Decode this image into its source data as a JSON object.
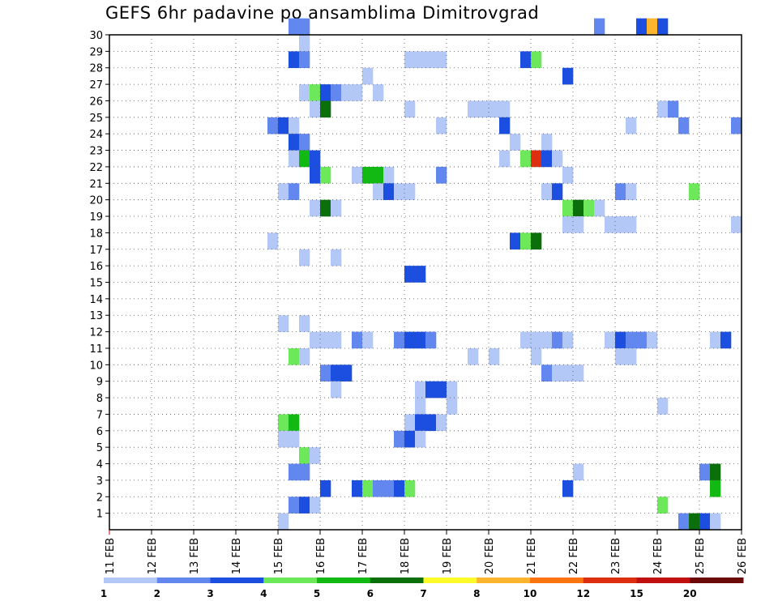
{
  "chart_data": {
    "type": "heatmap",
    "title": "GEFS 6hr padavine po ansamblima Dimitrovgrad",
    "xlabel": "",
    "ylabel": "",
    "x_tick_labels": [
      "11 FEB",
      "12 FEB",
      "13 FEB",
      "14 FEB",
      "15 FEB",
      "16 FEB",
      "17 FEB",
      "18 FEB",
      "19 FEB",
      "20 FEB",
      "21 FEB",
      "22 FEB",
      "23 FEB",
      "24 FEB",
      "25 FEB",
      "26 FEB"
    ],
    "y_tick_labels": [
      "1",
      "2",
      "3",
      "4",
      "5",
      "6",
      "7",
      "8",
      "9",
      "10",
      "11",
      "12",
      "13",
      "14",
      "15",
      "16",
      "17",
      "18",
      "19",
      "20",
      "21",
      "22",
      "23",
      "24",
      "25",
      "26",
      "27",
      "28",
      "29",
      "30"
    ],
    "xlim_days": [
      0,
      15
    ],
    "ylim_members": [
      0,
      30
    ],
    "x_step_days": 0.25,
    "grid": true,
    "legend": {
      "placement": "bottom",
      "colors": [
        "#b4c8f8",
        "#6288f0",
        "#1c4ee0",
        "#6de85a",
        "#12b912",
        "#0b6f0b",
        "#fffa2a",
        "#fdb530",
        "#fd7410",
        "#dd2e10",
        "#c01010",
        "#6c0a0a"
      ],
      "labels": [
        "1",
        "2",
        "3",
        "4",
        "5",
        "6",
        "7",
        "8",
        "10",
        "12",
        "15",
        "20"
      ]
    },
    "level_colors": {
      "1": "#b4c8f8",
      "2": "#6288f0",
      "3": "#1c4ee0",
      "4": "#6de85a",
      "5": "#12b912",
      "6": "#0b6f0b",
      "8": "#fdb530",
      "11": "#dd2e10"
    },
    "cells": [
      {
        "member": 30,
        "day": 4.25,
        "level": 2
      },
      {
        "member": 30,
        "day": 4.5,
        "level": 2
      },
      {
        "member": 30,
        "day": 11.5,
        "level": 2
      },
      {
        "member": 30,
        "day": 12.5,
        "level": 3
      },
      {
        "member": 30,
        "day": 12.75,
        "level": 8
      },
      {
        "member": 30,
        "day": 13.0,
        "level": 3
      },
      {
        "member": 29,
        "day": 4.5,
        "level": 1
      },
      {
        "member": 28,
        "day": 4.25,
        "level": 3
      },
      {
        "member": 28,
        "day": 4.5,
        "level": 2
      },
      {
        "member": 28,
        "day": 7.0,
        "level": 1
      },
      {
        "member": 28,
        "day": 7.25,
        "level": 1
      },
      {
        "member": 28,
        "day": 7.5,
        "level": 1
      },
      {
        "member": 28,
        "day": 7.75,
        "level": 1
      },
      {
        "member": 28,
        "day": 9.75,
        "level": 3
      },
      {
        "member": 28,
        "day": 10.0,
        "level": 4
      },
      {
        "member": 27,
        "day": 6.0,
        "level": 1
      },
      {
        "member": 27,
        "day": 10.75,
        "level": 3
      },
      {
        "member": 26,
        "day": 4.5,
        "level": 1
      },
      {
        "member": 26,
        "day": 4.75,
        "level": 4
      },
      {
        "member": 26,
        "day": 5.0,
        "level": 3
      },
      {
        "member": 26,
        "day": 5.25,
        "level": 2
      },
      {
        "member": 26,
        "day": 5.5,
        "level": 1
      },
      {
        "member": 26,
        "day": 5.75,
        "level": 1
      },
      {
        "member": 26,
        "day": 6.25,
        "level": 1
      },
      {
        "member": 25,
        "day": 4.75,
        "level": 1
      },
      {
        "member": 25,
        "day": 5.0,
        "level": 6
      },
      {
        "member": 25,
        "day": 7.0,
        "level": 1
      },
      {
        "member": 25,
        "day": 8.5,
        "level": 1
      },
      {
        "member": 25,
        "day": 8.75,
        "level": 1
      },
      {
        "member": 25,
        "day": 9.0,
        "level": 1
      },
      {
        "member": 25,
        "day": 9.25,
        "level": 1
      },
      {
        "member": 25,
        "day": 13.0,
        "level": 1
      },
      {
        "member": 25,
        "day": 13.25,
        "level": 2
      },
      {
        "member": 24,
        "day": 3.75,
        "level": 2
      },
      {
        "member": 24,
        "day": 4.0,
        "level": 3
      },
      {
        "member": 24,
        "day": 4.25,
        "level": 1
      },
      {
        "member": 24,
        "day": 7.75,
        "level": 1
      },
      {
        "member": 24,
        "day": 9.25,
        "level": 3
      },
      {
        "member": 24,
        "day": 12.25,
        "level": 1
      },
      {
        "member": 24,
        "day": 13.5,
        "level": 2
      },
      {
        "member": 24,
        "day": 14.75,
        "level": 2
      },
      {
        "member": 23,
        "day": 4.25,
        "level": 3
      },
      {
        "member": 23,
        "day": 4.5,
        "level": 2
      },
      {
        "member": 23,
        "day": 9.5,
        "level": 1
      },
      {
        "member": 23,
        "day": 10.25,
        "level": 1
      },
      {
        "member": 22,
        "day": 4.25,
        "level": 1
      },
      {
        "member": 22,
        "day": 4.5,
        "level": 5
      },
      {
        "member": 22,
        "day": 4.75,
        "level": 3
      },
      {
        "member": 22,
        "day": 9.25,
        "level": 1
      },
      {
        "member": 22,
        "day": 9.75,
        "level": 4
      },
      {
        "member": 22,
        "day": 10.0,
        "level": 11
      },
      {
        "member": 22,
        "day": 10.25,
        "level": 3
      },
      {
        "member": 22,
        "day": 10.5,
        "level": 1
      },
      {
        "member": 21,
        "day": 4.75,
        "level": 3
      },
      {
        "member": 21,
        "day": 5.0,
        "level": 4
      },
      {
        "member": 21,
        "day": 5.75,
        "level": 1
      },
      {
        "member": 21,
        "day": 6.0,
        "level": 5
      },
      {
        "member": 21,
        "day": 6.25,
        "level": 5
      },
      {
        "member": 21,
        "day": 6.5,
        "level": 1
      },
      {
        "member": 21,
        "day": 7.75,
        "level": 2
      },
      {
        "member": 21,
        "day": 10.75,
        "level": 1
      },
      {
        "member": 20,
        "day": 4.0,
        "level": 1
      },
      {
        "member": 20,
        "day": 4.25,
        "level": 2
      },
      {
        "member": 20,
        "day": 6.25,
        "level": 1
      },
      {
        "member": 20,
        "day": 6.5,
        "level": 3
      },
      {
        "member": 20,
        "day": 6.75,
        "level": 1
      },
      {
        "member": 20,
        "day": 7.0,
        "level": 1
      },
      {
        "member": 20,
        "day": 10.25,
        "level": 1
      },
      {
        "member": 20,
        "day": 10.5,
        "level": 3
      },
      {
        "member": 20,
        "day": 12.0,
        "level": 2
      },
      {
        "member": 20,
        "day": 12.25,
        "level": 1
      },
      {
        "member": 20,
        "day": 13.75,
        "level": 4
      },
      {
        "member": 19,
        "day": 4.75,
        "level": 1
      },
      {
        "member": 19,
        "day": 5.0,
        "level": 6
      },
      {
        "member": 19,
        "day": 5.25,
        "level": 1
      },
      {
        "member": 19,
        "day": 10.75,
        "level": 4
      },
      {
        "member": 19,
        "day": 11.0,
        "level": 6
      },
      {
        "member": 19,
        "day": 11.25,
        "level": 4
      },
      {
        "member": 19,
        "day": 11.5,
        "level": 1
      },
      {
        "member": 18,
        "day": 10.75,
        "level": 1
      },
      {
        "member": 18,
        "day": 11.0,
        "level": 1
      },
      {
        "member": 18,
        "day": 11.75,
        "level": 1
      },
      {
        "member": 18,
        "day": 12.0,
        "level": 1
      },
      {
        "member": 18,
        "day": 12.25,
        "level": 1
      },
      {
        "member": 18,
        "day": 14.75,
        "level": 1
      },
      {
        "member": 17,
        "day": 3.75,
        "level": 1
      },
      {
        "member": 17,
        "day": 9.5,
        "level": 3
      },
      {
        "member": 17,
        "day": 9.75,
        "level": 4
      },
      {
        "member": 17,
        "day": 10.0,
        "level": 6
      },
      {
        "member": 16,
        "day": 4.5,
        "level": 1
      },
      {
        "member": 16,
        "day": 5.25,
        "level": 1
      },
      {
        "member": 15,
        "day": 7.0,
        "level": 3
      },
      {
        "member": 15,
        "day": 7.25,
        "level": 3
      },
      {
        "member": 12,
        "day": 4.0,
        "level": 1
      },
      {
        "member": 12,
        "day": 4.5,
        "level": 1
      },
      {
        "member": 11,
        "day": 4.75,
        "level": 1
      },
      {
        "member": 11,
        "day": 5.0,
        "level": 1
      },
      {
        "member": 11,
        "day": 5.25,
        "level": 1
      },
      {
        "member": 11,
        "day": 5.75,
        "level": 2
      },
      {
        "member": 11,
        "day": 6.0,
        "level": 1
      },
      {
        "member": 11,
        "day": 6.75,
        "level": 2
      },
      {
        "member": 11,
        "day": 7.0,
        "level": 3
      },
      {
        "member": 11,
        "day": 7.25,
        "level": 3
      },
      {
        "member": 11,
        "day": 7.5,
        "level": 2
      },
      {
        "member": 11,
        "day": 9.75,
        "level": 1
      },
      {
        "member": 11,
        "day": 10.0,
        "level": 1
      },
      {
        "member": 11,
        "day": 10.25,
        "level": 1
      },
      {
        "member": 11,
        "day": 10.5,
        "level": 2
      },
      {
        "member": 11,
        "day": 10.75,
        "level": 1
      },
      {
        "member": 11,
        "day": 11.75,
        "level": 1
      },
      {
        "member": 11,
        "day": 12.0,
        "level": 3
      },
      {
        "member": 11,
        "day": 12.25,
        "level": 2
      },
      {
        "member": 11,
        "day": 12.5,
        "level": 2
      },
      {
        "member": 11,
        "day": 12.75,
        "level": 1
      },
      {
        "member": 11,
        "day": 14.25,
        "level": 1
      },
      {
        "member": 11,
        "day": 14.5,
        "level": 3
      },
      {
        "member": 10,
        "day": 4.25,
        "level": 4
      },
      {
        "member": 10,
        "day": 4.5,
        "level": 1
      },
      {
        "member": 10,
        "day": 8.5,
        "level": 1
      },
      {
        "member": 10,
        "day": 9.0,
        "level": 1
      },
      {
        "member": 10,
        "day": 10.0,
        "level": 1
      },
      {
        "member": 10,
        "day": 12.0,
        "level": 1
      },
      {
        "member": 10,
        "day": 12.25,
        "level": 1
      },
      {
        "member": 9,
        "day": 5.0,
        "level": 2
      },
      {
        "member": 9,
        "day": 5.25,
        "level": 3
      },
      {
        "member": 9,
        "day": 5.5,
        "level": 3
      },
      {
        "member": 9,
        "day": 10.25,
        "level": 2
      },
      {
        "member": 9,
        "day": 10.5,
        "level": 1
      },
      {
        "member": 9,
        "day": 10.75,
        "level": 1
      },
      {
        "member": 9,
        "day": 11.0,
        "level": 1
      },
      {
        "member": 8,
        "day": 5.25,
        "level": 1
      },
      {
        "member": 8,
        "day": 7.25,
        "level": 1
      },
      {
        "member": 8,
        "day": 7.5,
        "level": 3
      },
      {
        "member": 8,
        "day": 7.75,
        "level": 3
      },
      {
        "member": 8,
        "day": 8.0,
        "level": 1
      },
      {
        "member": 7,
        "day": 7.25,
        "level": 1
      },
      {
        "member": 7,
        "day": 8.0,
        "level": 1
      },
      {
        "member": 7,
        "day": 13.0,
        "level": 1
      },
      {
        "member": 6,
        "day": 4.0,
        "level": 4
      },
      {
        "member": 6,
        "day": 4.25,
        "level": 5
      },
      {
        "member": 6,
        "day": 7.0,
        "level": 1
      },
      {
        "member": 6,
        "day": 7.25,
        "level": 3
      },
      {
        "member": 6,
        "day": 7.5,
        "level": 3
      },
      {
        "member": 6,
        "day": 7.75,
        "level": 1
      },
      {
        "member": 5,
        "day": 4.0,
        "level": 1
      },
      {
        "member": 5,
        "day": 4.25,
        "level": 1
      },
      {
        "member": 5,
        "day": 6.75,
        "level": 2
      },
      {
        "member": 5,
        "day": 7.0,
        "level": 3
      },
      {
        "member": 5,
        "day": 7.25,
        "level": 1
      },
      {
        "member": 4,
        "day": 4.5,
        "level": 4
      },
      {
        "member": 4,
        "day": 4.75,
        "level": 1
      },
      {
        "member": 3,
        "day": 4.25,
        "level": 2
      },
      {
        "member": 3,
        "day": 4.5,
        "level": 2
      },
      {
        "member": 3,
        "day": 11.0,
        "level": 1
      },
      {
        "member": 3,
        "day": 14.0,
        "level": 2
      },
      {
        "member": 3,
        "day": 14.25,
        "level": 6
      },
      {
        "member": 2,
        "day": 5.0,
        "level": 3
      },
      {
        "member": 2,
        "day": 5.75,
        "level": 3
      },
      {
        "member": 2,
        "day": 6.0,
        "level": 4
      },
      {
        "member": 2,
        "day": 6.25,
        "level": 2
      },
      {
        "member": 2,
        "day": 6.5,
        "level": 2
      },
      {
        "member": 2,
        "day": 6.75,
        "level": 3
      },
      {
        "member": 2,
        "day": 7.0,
        "level": 4
      },
      {
        "member": 2,
        "day": 10.75,
        "level": 3
      },
      {
        "member": 2,
        "day": 14.25,
        "level": 5
      },
      {
        "member": 1,
        "day": 4.25,
        "level": 2
      },
      {
        "member": 1,
        "day": 4.5,
        "level": 3
      },
      {
        "member": 1,
        "day": 4.75,
        "level": 1
      },
      {
        "member": 1,
        "day": 13.0,
        "level": 4
      },
      {
        "member": 0,
        "day": 4.0,
        "level": 1
      },
      {
        "member": 0,
        "day": 13.5,
        "level": 2
      },
      {
        "member": 0,
        "day": 13.75,
        "level": 6
      },
      {
        "member": 0,
        "day": 14.0,
        "level": 3
      },
      {
        "member": 0,
        "day": 14.25,
        "level": 1
      }
    ]
  }
}
